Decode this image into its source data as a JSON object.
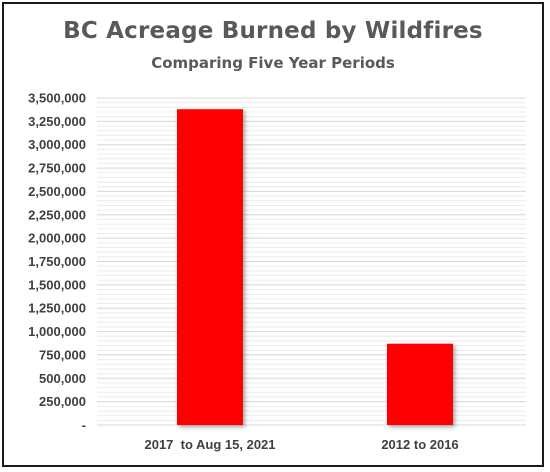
{
  "chart_data": {
    "type": "bar",
    "title": "BC Acreage Burned by Wildfires",
    "subtitle": "Comparing Five Year Periods",
    "xlabel": "",
    "ylabel": "",
    "categories": [
      "2017  to Aug 15, 2021",
      "2012 to 2016"
    ],
    "values": [
      3380000,
      870000
    ],
    "ylim": [
      0,
      3500000
    ],
    "yticks": [
      0,
      250000,
      500000,
      750000,
      1000000,
      1250000,
      1500000,
      1750000,
      2000000,
      2250000,
      2500000,
      2750000,
      3000000,
      3250000,
      3500000
    ],
    "ytick_labels": [
      "-",
      "250,000",
      "500,000",
      "750,000",
      "1,000,000",
      "1,250,000",
      "1,500,000",
      "1,750,000",
      "2,000,000",
      "2,250,000",
      "2,500,000",
      "2,750,000",
      "3,000,000",
      "3,250,000",
      "3,500,000"
    ],
    "grid": true,
    "legend": "none",
    "bar_color": "#ff0000",
    "grid_color": "#d9d9d9"
  }
}
